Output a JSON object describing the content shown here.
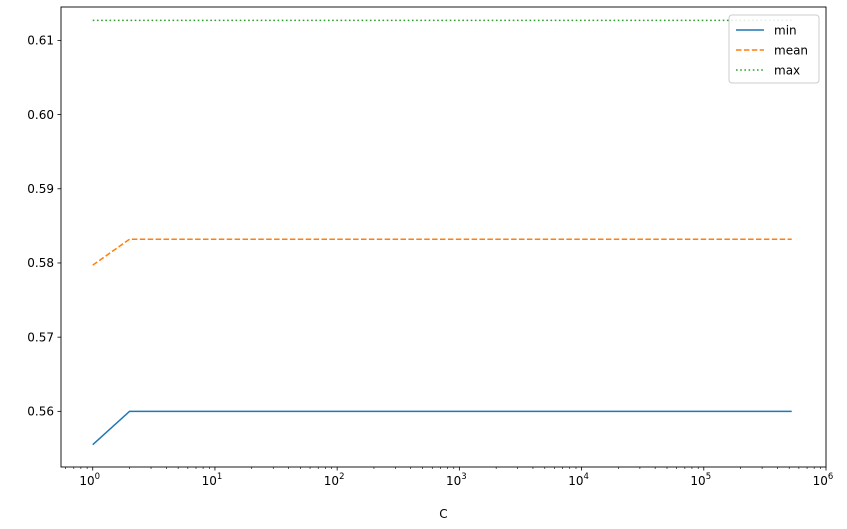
{
  "chart_data": {
    "type": "line",
    "xlabel": "C",
    "ylabel": "",
    "title": "",
    "x_scale": "log",
    "xlim": [
      0.55,
      1000000
    ],
    "ylim": [
      0.5525,
      0.6145
    ],
    "x_ticks": [
      {
        "value": 1,
        "base": "10",
        "exp": "0"
      },
      {
        "value": 10,
        "base": "10",
        "exp": "1"
      },
      {
        "value": 100,
        "base": "10",
        "exp": "2"
      },
      {
        "value": 1000,
        "base": "10",
        "exp": "3"
      },
      {
        "value": 10000,
        "base": "10",
        "exp": "4"
      },
      {
        "value": 100000,
        "base": "10",
        "exp": "5"
      },
      {
        "value": 1000000,
        "base": "10",
        "exp": "6"
      }
    ],
    "y_ticks": [
      {
        "value": 0.56,
        "label": "0.56"
      },
      {
        "value": 0.57,
        "label": "0.57"
      },
      {
        "value": 0.58,
        "label": "0.58"
      },
      {
        "value": 0.59,
        "label": "0.59"
      },
      {
        "value": 0.6,
        "label": "0.60"
      },
      {
        "value": 0.61,
        "label": "0.61"
      }
    ],
    "x": [
      1,
      2,
      524288
    ],
    "series": [
      {
        "name": "min",
        "values": [
          0.5555,
          0.56,
          0.56
        ],
        "color": "#1f77b4",
        "style": "solid"
      },
      {
        "name": "mean",
        "values": [
          0.5797,
          0.5832,
          0.5832
        ],
        "color": "#ff7f0e",
        "style": "dashed"
      },
      {
        "name": "max",
        "values": [
          0.6127,
          0.6127,
          0.6127
        ],
        "color": "#2ca02c",
        "style": "dotted"
      }
    ],
    "grid": false,
    "legend_position": "top-right"
  }
}
